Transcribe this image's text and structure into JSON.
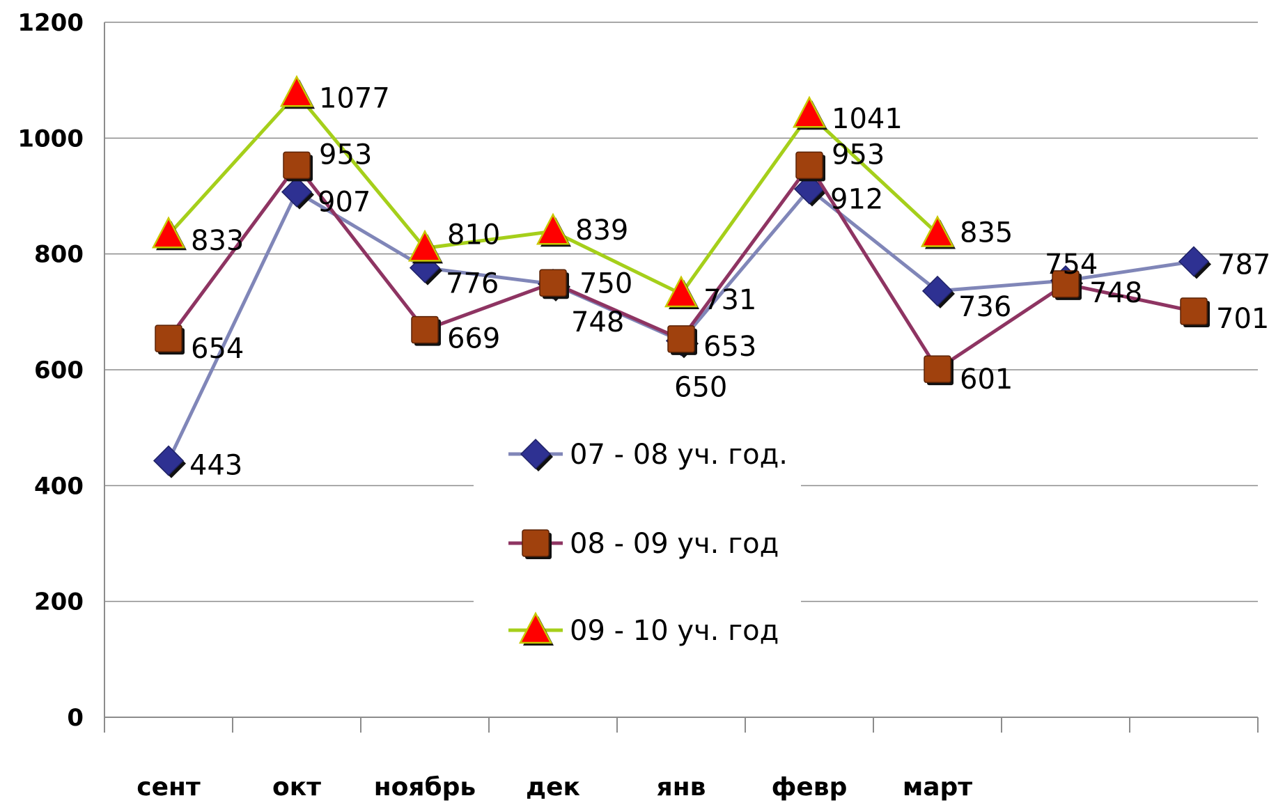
{
  "chart_data": {
    "type": "line",
    "categories": [
      "сент",
      "окт",
      "ноябрь",
      "дек",
      "янв",
      "февр",
      "март",
      "",
      ""
    ],
    "ylim": [
      0,
      1200
    ],
    "yticks": [
      0,
      200,
      400,
      600,
      800,
      1000,
      1200
    ],
    "grid": true,
    "legend_position": "center",
    "series": [
      {
        "name": "07 - 08 уч. год.",
        "marker": "diamond",
        "color": "#8086b8",
        "marker_color": "#2e3192",
        "values": [
          443,
          907,
          776,
          748,
          650,
          912,
          736,
          754,
          787
        ],
        "labels": [
          "443",
          "907",
          "776",
          "748",
          "650",
          "912",
          "736",
          "754",
          "787"
        ]
      },
      {
        "name": "08 - 09 уч. год",
        "marker": "square",
        "color": "#8e3462",
        "marker_color": "#a0410d",
        "values": [
          654,
          953,
          669,
          750,
          653,
          953,
          601,
          748,
          701
        ],
        "labels": [
          "654",
          "953",
          "669",
          "750",
          "653",
          "953",
          "601",
          "748",
          "701"
        ]
      },
      {
        "name": "09 - 10 уч. год",
        "marker": "triangle",
        "color": "#a5cf1a",
        "marker_color": "#ff0000",
        "values": [
          833,
          1077,
          810,
          839,
          731,
          1041,
          835,
          null,
          null
        ],
        "labels": [
          "833",
          "1077",
          "810",
          "839",
          "731",
          "1041",
          "835",
          "",
          ""
        ]
      }
    ]
  }
}
